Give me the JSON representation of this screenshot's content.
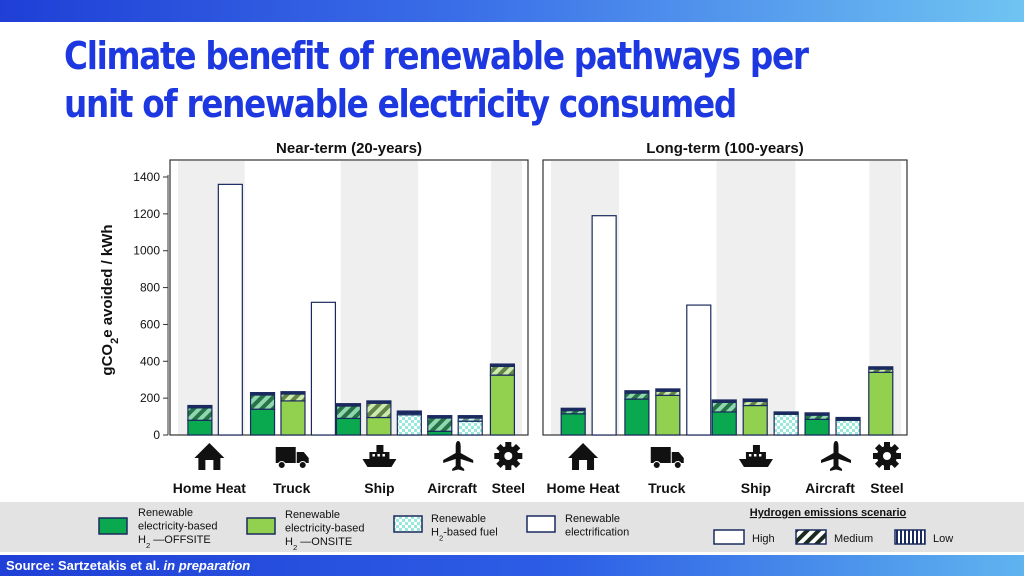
{
  "title": "Climate benefit of renewable pathways per unit of renewable electricity consumed",
  "source_prefix": "Source: Sartzetakis et al.",
  "source_italic": "in preparation",
  "colors": {
    "offsite": "#0aa84f",
    "onsite": "#92d050",
    "h2fuel": "#98e8dc",
    "electrification": "#ffffff",
    "outline": "#1a2a5e",
    "band": "#efefef",
    "title": "#1d38e0"
  },
  "chart_data": {
    "type": "bar",
    "ylabel": "gCO2e avoided / kWh",
    "ylim": [
      0,
      1400
    ],
    "yticks": [
      0,
      200,
      400,
      600,
      800,
      1000,
      1200,
      1400
    ],
    "categories": [
      "Home Heat",
      "Truck",
      "Ship",
      "Aircraft",
      "Steel"
    ],
    "category_icons": [
      "house-icon",
      "truck-icon",
      "ship-icon",
      "airplane-icon",
      "gear-icon"
    ],
    "panels": [
      {
        "title": "Near-term (20-years)",
        "bars": [
          {
            "category": "Home Heat",
            "pathway": "offsite",
            "base": 80,
            "medium": 80
          },
          {
            "category": "Home Heat",
            "pathway": "electrification",
            "base": 1360,
            "medium": 0
          },
          {
            "category": "Truck",
            "pathway": "offsite",
            "base": 140,
            "medium": 90
          },
          {
            "category": "Truck",
            "pathway": "onsite",
            "base": 185,
            "medium": 50
          },
          {
            "category": "Truck",
            "pathway": "electrification",
            "base": 720,
            "medium": 0
          },
          {
            "category": "Ship",
            "pathway": "offsite",
            "base": 90,
            "medium": 80
          },
          {
            "category": "Ship",
            "pathway": "onsite",
            "base": 95,
            "medium": 90
          },
          {
            "category": "Ship",
            "pathway": "h2fuel",
            "base": 110,
            "medium": 20
          },
          {
            "category": "Aircraft",
            "pathway": "offsite",
            "base": 20,
            "medium": 85
          },
          {
            "category": "Aircraft",
            "pathway": "h2fuel",
            "base": 75,
            "medium": 30
          },
          {
            "category": "Steel",
            "pathway": "onsite",
            "base": 325,
            "medium": 60
          }
        ]
      },
      {
        "title": "Long-term (100-years)",
        "bars": [
          {
            "category": "Home Heat",
            "pathway": "offsite",
            "base": 115,
            "medium": 30
          },
          {
            "category": "Home Heat",
            "pathway": "electrification",
            "base": 1190,
            "medium": 0
          },
          {
            "category": "Truck",
            "pathway": "offsite",
            "base": 195,
            "medium": 45
          },
          {
            "category": "Truck",
            "pathway": "onsite",
            "base": 215,
            "medium": 35
          },
          {
            "category": "Truck",
            "pathway": "electrification",
            "base": 705,
            "medium": 0
          },
          {
            "category": "Ship",
            "pathway": "offsite",
            "base": 125,
            "medium": 65
          },
          {
            "category": "Ship",
            "pathway": "onsite",
            "base": 160,
            "medium": 35
          },
          {
            "category": "Ship",
            "pathway": "h2fuel",
            "base": 115,
            "medium": 10
          },
          {
            "category": "Aircraft",
            "pathway": "offsite",
            "base": 85,
            "medium": 35
          },
          {
            "category": "Aircraft",
            "pathway": "h2fuel",
            "base": 80,
            "medium": 15
          },
          {
            "category": "Steel",
            "pathway": "onsite",
            "base": 340,
            "medium": 30
          }
        ]
      }
    ],
    "legend": {
      "pathways": [
        {
          "key": "offsite",
          "lines": [
            "Renewable",
            "electricity-based",
            "H2 —OFFSITE"
          ]
        },
        {
          "key": "onsite",
          "lines": [
            "Renewable",
            "electricity-based",
            "H2 —ONSITE"
          ]
        },
        {
          "key": "h2fuel",
          "lines": [
            "Renewable",
            "H2-based fuel"
          ]
        },
        {
          "key": "electrification",
          "lines": [
            "Renewable",
            "electrification"
          ]
        }
      ],
      "scenario_title": "Hydrogen emissions scenario",
      "scenarios": [
        "High",
        "Medium",
        "Low"
      ]
    }
  }
}
